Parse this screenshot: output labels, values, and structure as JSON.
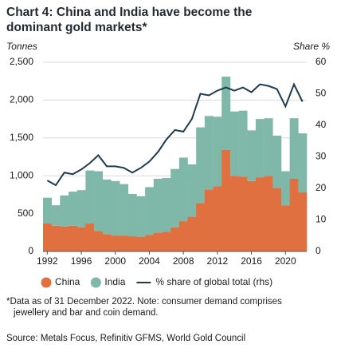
{
  "chart_data": {
    "type": "stacked_area_line",
    "title": [
      "Chart 4: China and India have become the",
      "dominant gold markets*"
    ],
    "y_label": "Tonnes",
    "y2_label": "Share %",
    "x": [
      1992,
      1993,
      1994,
      1995,
      1996,
      1997,
      1998,
      1999,
      2000,
      2001,
      2002,
      2003,
      2004,
      2005,
      2006,
      2007,
      2008,
      2009,
      2010,
      2011,
      2012,
      2013,
      2014,
      2015,
      2016,
      2017,
      2018,
      2019,
      2020,
      2021,
      2022
    ],
    "xlim": [
      1991.5,
      2022.5
    ],
    "xticks": [
      1992,
      1996,
      2000,
      2004,
      2008,
      2012,
      2016,
      2020
    ],
    "ylim": [
      0,
      2500
    ],
    "yticks": [
      0,
      500,
      {
        "value": 1000,
        "label": "1,000"
      },
      {
        "value": 1500,
        "label": "1,500"
      },
      {
        "value": 2000,
        "label": "2,000"
      },
      {
        "value": 2500,
        "label": "2,500"
      }
    ],
    "y2lim": [
      0,
      60
    ],
    "y2ticks": [
      0,
      10,
      20,
      30,
      40,
      50,
      60
    ],
    "grid": true,
    "series": [
      {
        "name": "China",
        "color": "#e0703f",
        "values": [
          370,
          340,
          330,
          340,
          320,
          370,
          270,
          230,
          210,
          210,
          200,
          190,
          220,
          250,
          260,
          320,
          400,
          460,
          640,
          820,
          860,
          1340,
          1000,
          990,
          930,
          980,
          1000,
          840,
          610,
          960,
          780
        ]
      },
      {
        "name": "India",
        "color": "#7fb8a9",
        "values": [
          340,
          270,
          410,
          450,
          490,
          700,
          790,
          720,
          720,
          680,
          560,
          540,
          630,
          710,
          710,
          770,
          840,
          690,
          1000,
          970,
          920,
          970,
          850,
          870,
          670,
          770,
          760,
          690,
          450,
          800,
          780
        ]
      },
      {
        "name": "% share of global total (rhs)",
        "color": "#1f3b4d",
        "axis": "y2",
        "values": [
          22.5,
          21,
          25,
          24.5,
          26,
          28,
          30.5,
          27,
          27,
          26.5,
          25,
          26.5,
          28.5,
          31.5,
          35.5,
          38.5,
          38,
          42,
          50,
          49.5,
          51,
          52,
          51,
          52,
          50.5,
          53,
          52.5,
          51.5,
          46,
          53,
          47.5
        ]
      }
    ],
    "note": "*Data as of 31 December 2022. Note: consumer demand comprises jewellery and bar and coin demand.",
    "source": "Source: Metals Focus, Refinitiv GFMS, World Gold Council"
  }
}
